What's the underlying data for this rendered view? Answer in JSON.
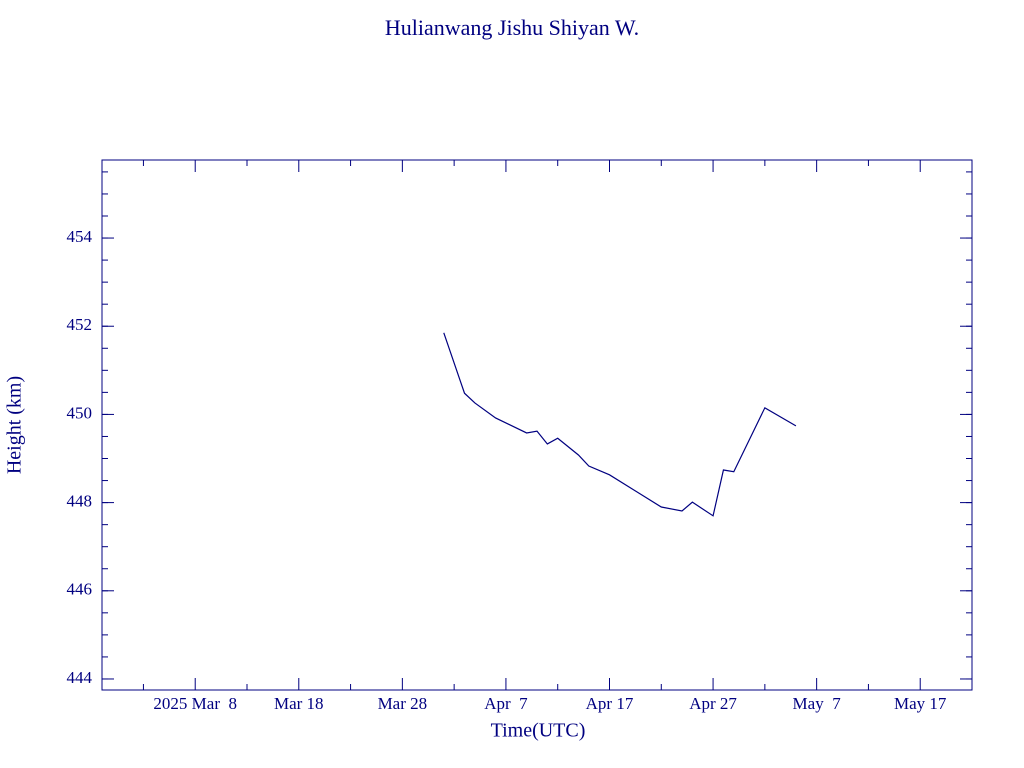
{
  "chart_data": {
    "type": "line",
    "title": "Hulianwang Jishu Shiyan W.",
    "x_label": "Time(UTC)",
    "y_label": "Height (km)",
    "x": [
      "2025-04-01",
      "2025-04-03",
      "2025-04-04",
      "2025-04-06",
      "2025-04-09",
      "2025-04-10",
      "2025-04-11",
      "2025-04-12",
      "2025-04-14",
      "2025-04-15",
      "2025-04-17",
      "2025-04-22",
      "2025-04-24",
      "2025-04-25",
      "2025-04-27",
      "2025-04-28",
      "2025-04-29",
      "2025-05-02",
      "2025-05-05"
    ],
    "values": [
      451.85,
      450.48,
      450.26,
      449.92,
      449.58,
      449.62,
      449.33,
      449.46,
      449.08,
      448.83,
      448.63,
      447.9,
      447.81,
      448.01,
      447.7,
      448.74,
      448.7,
      450.15,
      449.74
    ],
    "color": "#000080",
    "xlim": [
      "2025-02-27",
      "2025-05-22"
    ],
    "xticks": [
      {
        "value": "2025-03-08",
        "label": "2025 Mar  8"
      },
      {
        "value": "2025-03-18",
        "label": "Mar 18"
      },
      {
        "value": "2025-03-28",
        "label": "Mar 28"
      },
      {
        "value": "2025-04-07",
        "label": "Apr  7"
      },
      {
        "value": "2025-04-17",
        "label": "Apr 17"
      },
      {
        "value": "2025-04-27",
        "label": "Apr 27"
      },
      {
        "value": "2025-05-07",
        "label": "May  7"
      },
      {
        "value": "2025-05-17",
        "label": "May 17"
      }
    ],
    "ylim": [
      443.75,
      455.77
    ],
    "yticks": [
      444,
      446,
      448,
      450,
      452,
      454
    ]
  }
}
